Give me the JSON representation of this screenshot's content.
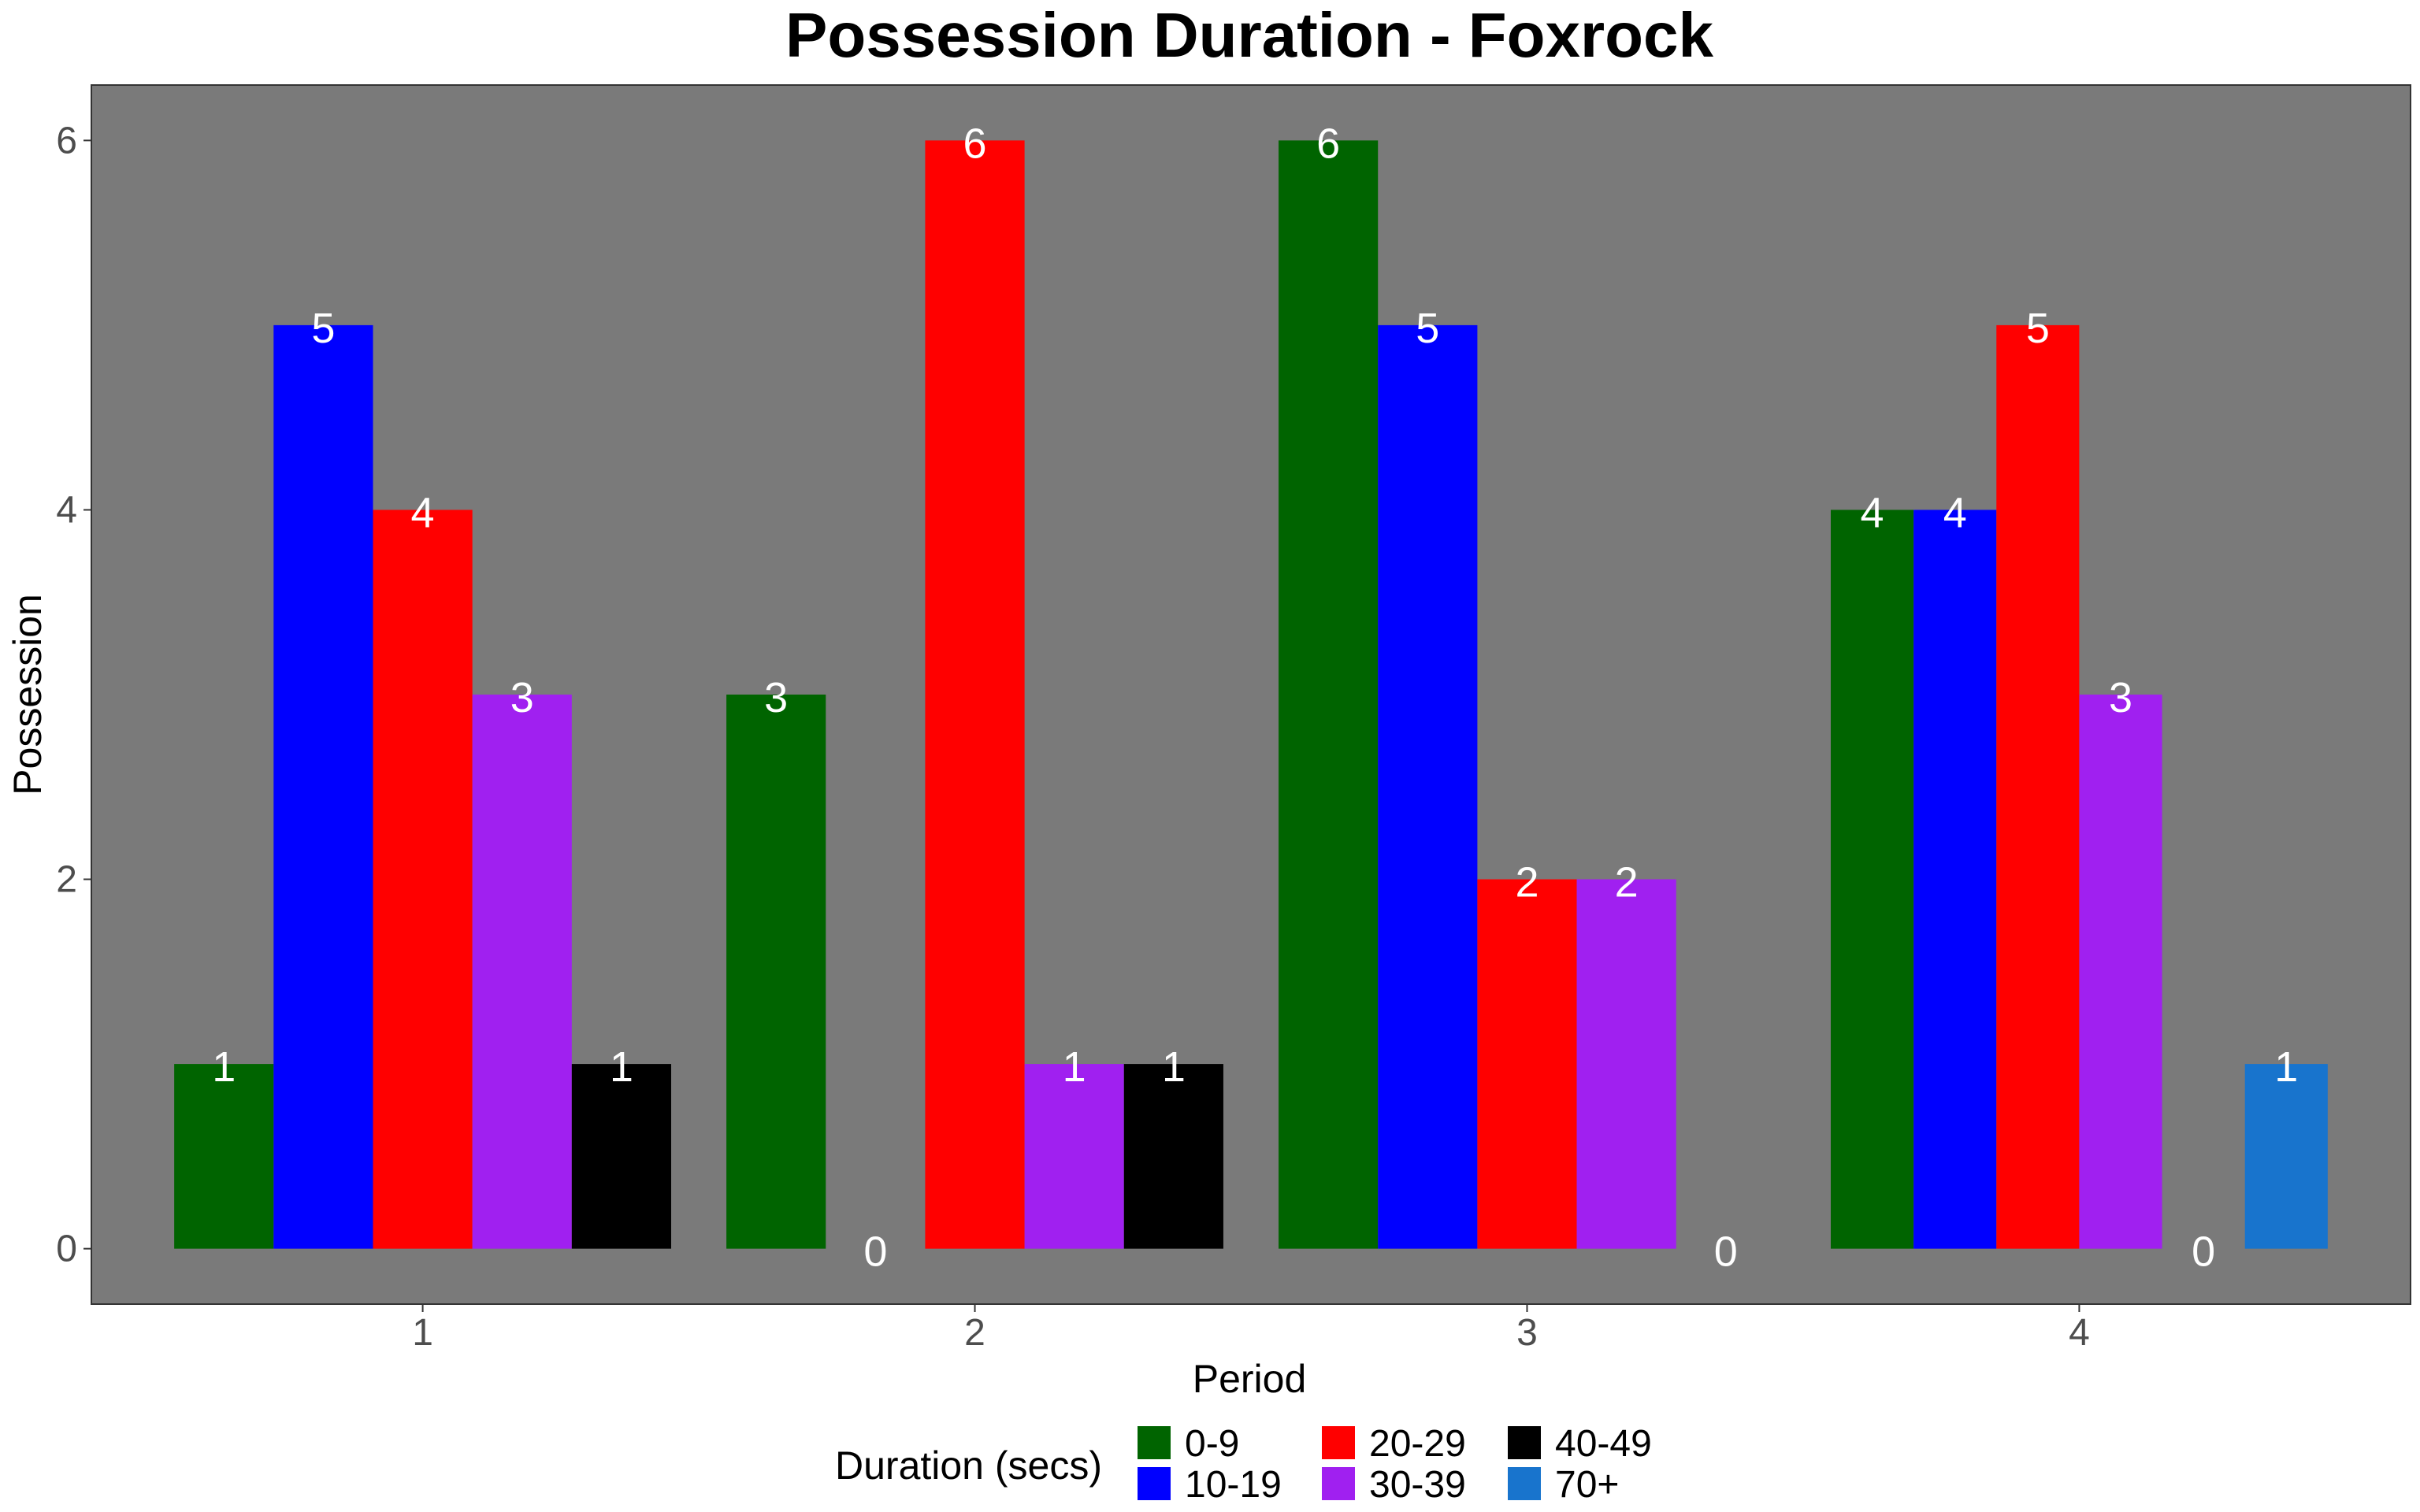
{
  "chart_data": {
    "type": "bar",
    "title": "Possession Duration - Foxrock",
    "xlabel": "Period",
    "ylabel": "Possession",
    "categories": [
      "1",
      "2",
      "3",
      "4"
    ],
    "ylim": [
      -0.3,
      6.3
    ],
    "yticks": [
      0,
      2,
      4,
      6
    ],
    "grid": false,
    "legend": {
      "title": "Duration (secs)",
      "position": "bottom",
      "entries": [
        "0-9",
        "10-19",
        "20-29",
        "30-39",
        "40-49",
        "70+"
      ]
    },
    "colors": {
      "0-9": "#006400",
      "10-19": "#0000ff",
      "20-29": "#ff0000",
      "30-39": "#a020f0",
      "40-49": "#000000",
      "70+": "#1874cd",
      "panel": "#7a7a7a"
    },
    "bars": [
      {
        "period": "1",
        "duration": "0-9",
        "value": 1
      },
      {
        "period": "1",
        "duration": "10-19",
        "value": 5
      },
      {
        "period": "1",
        "duration": "20-29",
        "value": 4
      },
      {
        "period": "1",
        "duration": "30-39",
        "value": 3
      },
      {
        "period": "1",
        "duration": "40-49",
        "value": 1
      },
      {
        "period": "2",
        "duration": "0-9",
        "value": 3
      },
      {
        "period": "2",
        "duration": "10-19",
        "value": 0
      },
      {
        "period": "2",
        "duration": "20-29",
        "value": 6
      },
      {
        "period": "2",
        "duration": "30-39",
        "value": 1
      },
      {
        "period": "2",
        "duration": "40-49",
        "value": 1
      },
      {
        "period": "3",
        "duration": "0-9",
        "value": 6
      },
      {
        "period": "3",
        "duration": "10-19",
        "value": 5
      },
      {
        "period": "3",
        "duration": "20-29",
        "value": 2
      },
      {
        "period": "3",
        "duration": "30-39",
        "value": 2
      },
      {
        "period": "3",
        "duration": "40-49",
        "value": 0
      },
      {
        "period": "4",
        "duration": "0-9",
        "value": 4
      },
      {
        "period": "4",
        "duration": "10-19",
        "value": 4
      },
      {
        "period": "4",
        "duration": "20-29",
        "value": 5
      },
      {
        "period": "4",
        "duration": "30-39",
        "value": 3
      },
      {
        "period": "4",
        "duration": "40-49",
        "value": 0
      },
      {
        "period": "4",
        "duration": "70+",
        "value": 1
      }
    ]
  }
}
